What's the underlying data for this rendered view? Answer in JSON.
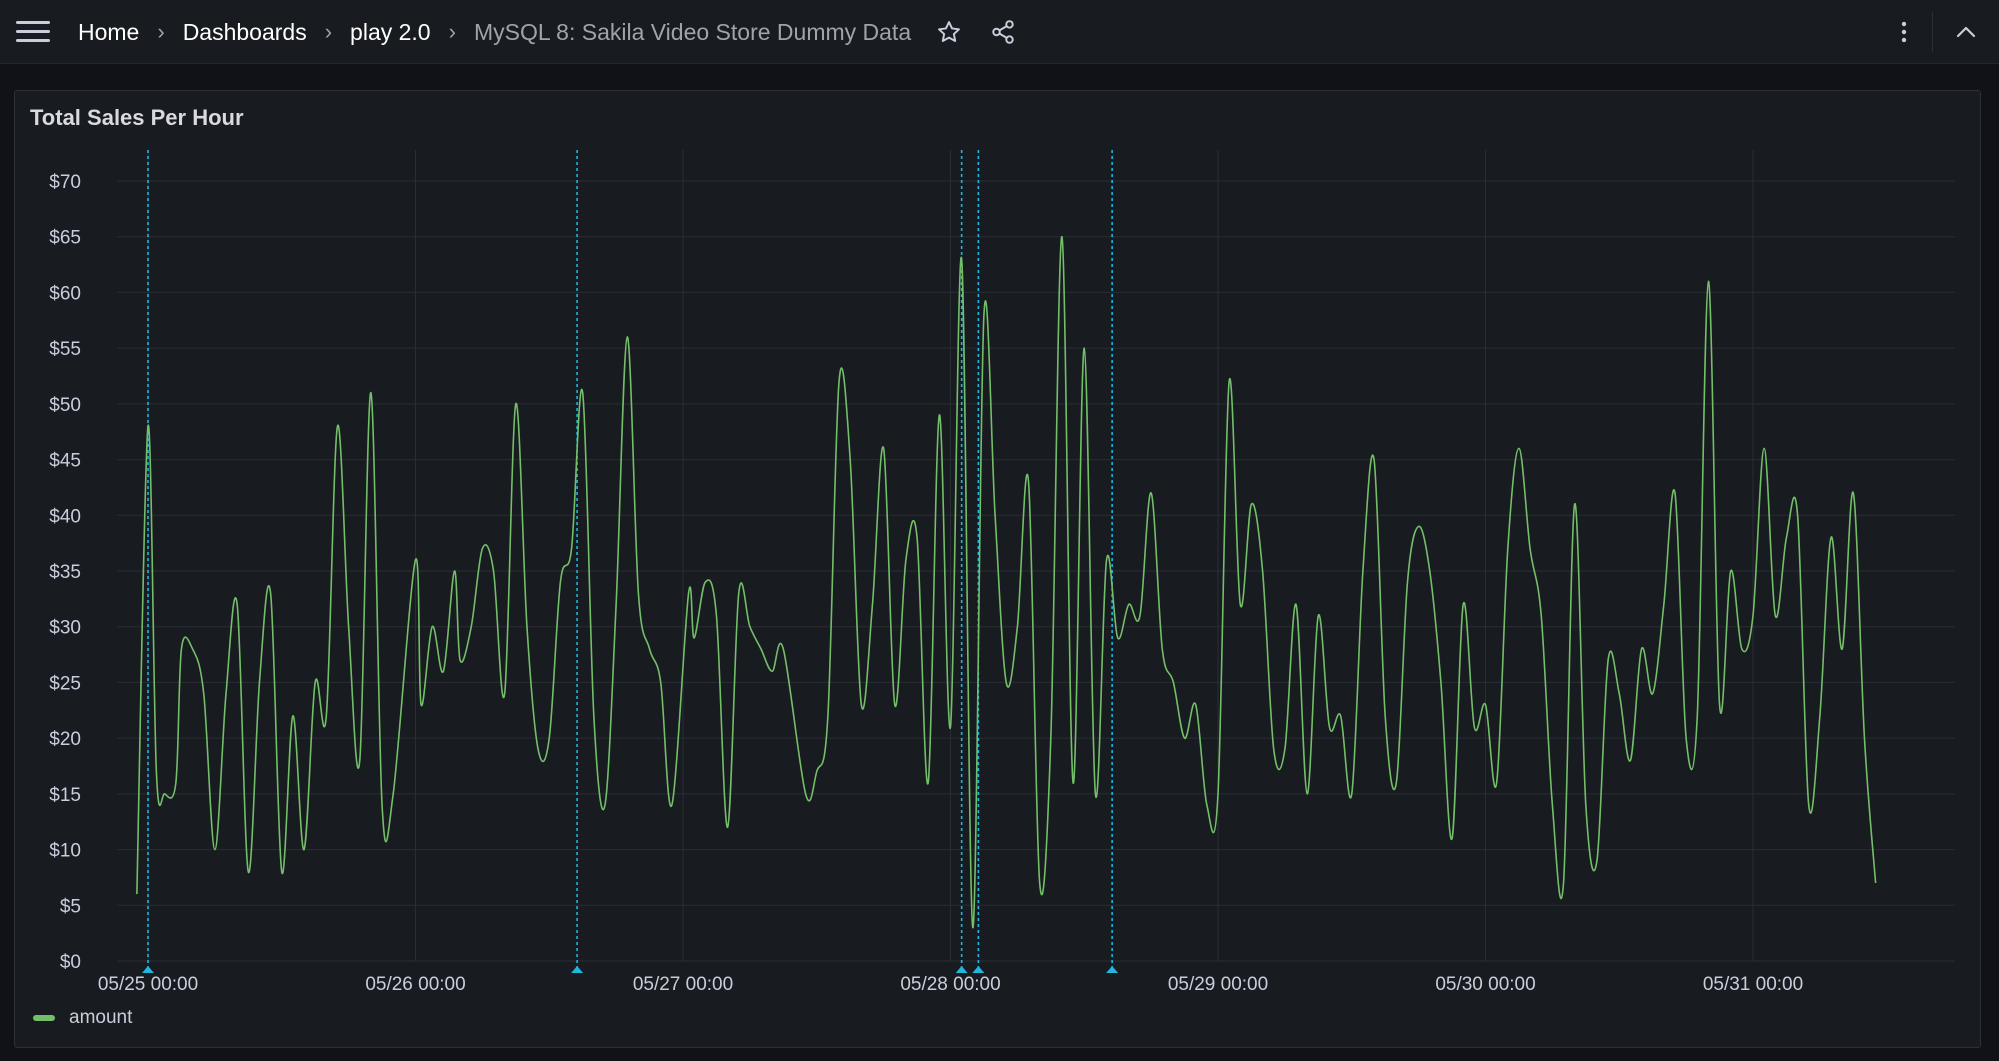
{
  "breadcrumb": {
    "home": "Home",
    "dashboards": "Dashboards",
    "folder": "play 2.0",
    "current": "MySQL 8: Sakila Video Store Dummy Data"
  },
  "icons": {
    "menu": "hamburger-menu-icon",
    "star": "star-icon",
    "share": "share-icon",
    "more": "kebab-menu-icon",
    "collapse": "chevron-up-icon"
  },
  "colors": {
    "series": "#73bf69",
    "annotation": "#1fb6e0",
    "background": "#181b1f"
  },
  "panel": {
    "title": "Total Sales Per Hour"
  },
  "chart_data": {
    "type": "line",
    "title": "Total Sales Per Hour",
    "xlabel": "",
    "ylabel": "",
    "ylim": [
      0,
      70
    ],
    "y_ticks": [
      "$0",
      "$5",
      "$10",
      "$15",
      "$20",
      "$25",
      "$30",
      "$35",
      "$40",
      "$45",
      "$50",
      "$55",
      "$60",
      "$65",
      "$70"
    ],
    "x_ticks": [
      "05/25 00:00",
      "05/26 00:00",
      "05/27 00:00",
      "05/28 00:00",
      "05/29 00:00",
      "05/30 00:00",
      "05/31 00:00"
    ],
    "legend": {
      "placement": "bottom-left",
      "entries": [
        "amount"
      ]
    },
    "grid": true,
    "annotations_x": [
      "05/25 00:00",
      "05/26 14:30",
      "05/28 01:00",
      "05/28 02:30",
      "05/28 14:30"
    ],
    "series": [
      {
        "name": "amount",
        "points": [
          [
            "05/24 23:00",
            6
          ],
          [
            "05/25 00:00",
            48
          ],
          [
            "05/25 00:45",
            17
          ],
          [
            "05/25 01:30",
            15
          ],
          [
            "05/25 02:30",
            16
          ],
          [
            "05/25 03:00",
            28
          ],
          [
            "05/25 04:00",
            28
          ],
          [
            "05/25 05:00",
            24
          ],
          [
            "05/25 06:00",
            10
          ],
          [
            "05/25 07:00",
            24
          ],
          [
            "05/25 08:00",
            32
          ],
          [
            "05/25 09:00",
            8
          ],
          [
            "05/25 10:00",
            25
          ],
          [
            "05/25 11:00",
            33
          ],
          [
            "05/25 12:00",
            8
          ],
          [
            "05/25 13:00",
            22
          ],
          [
            "05/25 14:00",
            10
          ],
          [
            "05/25 15:00",
            25
          ],
          [
            "05/25 16:00",
            22
          ],
          [
            "05/25 17:00",
            48
          ],
          [
            "05/25 18:00",
            30
          ],
          [
            "05/25 19:00",
            18
          ],
          [
            "05/25 20:00",
            51
          ],
          [
            "05/25 21:00",
            14
          ],
          [
            "05/25 22:00",
            15
          ],
          [
            "05/26 00:00",
            36
          ],
          [
            "05/26 00:30",
            23
          ],
          [
            "05/26 01:30",
            30
          ],
          [
            "05/26 02:30",
            26
          ],
          [
            "05/26 03:30",
            35
          ],
          [
            "05/26 04:00",
            27
          ],
          [
            "05/26 05:00",
            30
          ],
          [
            "05/26 06:00",
            37
          ],
          [
            "05/26 07:00",
            35
          ],
          [
            "05/26 08:00",
            24
          ],
          [
            "05/26 09:00",
            50
          ],
          [
            "05/26 10:00",
            30
          ],
          [
            "05/26 11:00",
            19
          ],
          [
            "05/26 12:00",
            20
          ],
          [
            "05/26 13:00",
            34
          ],
          [
            "05/26 14:00",
            37
          ],
          [
            "05/26 15:00",
            51
          ],
          [
            "05/26 16:00",
            22
          ],
          [
            "05/26 17:00",
            14
          ],
          [
            "05/26 18:00",
            32
          ],
          [
            "05/26 19:00",
            56
          ],
          [
            "05/26 20:00",
            33
          ],
          [
            "05/26 21:00",
            28
          ],
          [
            "05/26 22:00",
            25
          ],
          [
            "05/26 23:00",
            14
          ],
          [
            "05/27 00:30",
            33
          ],
          [
            "05/27 01:00",
            29
          ],
          [
            "05/27 02:00",
            34
          ],
          [
            "05/27 03:00",
            31
          ],
          [
            "05/27 04:00",
            12
          ],
          [
            "05/27 05:00",
            33
          ],
          [
            "05/27 06:00",
            30
          ],
          [
            "05/27 07:00",
            28
          ],
          [
            "05/27 08:00",
            26
          ],
          [
            "05/27 09:00",
            28
          ],
          [
            "05/27 11:00",
            15
          ],
          [
            "05/27 12:00",
            17
          ],
          [
            "05/27 13:00",
            22
          ],
          [
            "05/27 14:00",
            52
          ],
          [
            "05/27 15:00",
            45
          ],
          [
            "05/27 16:00",
            23
          ],
          [
            "05/27 17:00",
            32
          ],
          [
            "05/27 18:00",
            46
          ],
          [
            "05/27 19:00",
            23
          ],
          [
            "05/27 20:00",
            36
          ],
          [
            "05/27 21:00",
            38
          ],
          [
            "05/27 22:00",
            16
          ],
          [
            "05/27 23:00",
            49
          ],
          [
            "05/28 00:00",
            21
          ],
          [
            "05/28 01:00",
            63
          ],
          [
            "05/28 02:00",
            3
          ],
          [
            "05/28 03:00",
            58
          ],
          [
            "05/28 04:00",
            40
          ],
          [
            "05/28 05:00",
            25
          ],
          [
            "05/28 06:00",
            30
          ],
          [
            "05/28 07:00",
            43
          ],
          [
            "05/28 08:00",
            7
          ],
          [
            "05/28 09:00",
            20
          ],
          [
            "05/28 10:00",
            65
          ],
          [
            "05/28 11:00",
            16
          ],
          [
            "05/28 12:00",
            55
          ],
          [
            "05/28 13:00",
            15
          ],
          [
            "05/28 14:00",
            36
          ],
          [
            "05/28 15:00",
            29
          ],
          [
            "05/28 16:00",
            32
          ],
          [
            "05/28 17:00",
            31
          ],
          [
            "05/28 18:00",
            42
          ],
          [
            "05/28 19:00",
            28
          ],
          [
            "05/28 20:00",
            25
          ],
          [
            "05/28 21:00",
            20
          ],
          [
            "05/28 22:00",
            23
          ],
          [
            "05/28 23:00",
            14
          ],
          [
            "05/29 00:00",
            15
          ],
          [
            "05/29 01:00",
            52
          ],
          [
            "05/29 02:00",
            32
          ],
          [
            "05/29 03:00",
            41
          ],
          [
            "05/29 04:00",
            35
          ],
          [
            "05/29 05:00",
            19
          ],
          [
            "05/29 06:00",
            19
          ],
          [
            "05/29 07:00",
            32
          ],
          [
            "05/29 08:00",
            15
          ],
          [
            "05/29 09:00",
            31
          ],
          [
            "05/29 10:00",
            21
          ],
          [
            "05/29 11:00",
            22
          ],
          [
            "05/29 12:00",
            15
          ],
          [
            "05/29 13:00",
            35
          ],
          [
            "05/29 14:00",
            45
          ],
          [
            "05/29 15:00",
            22
          ],
          [
            "05/29 16:00",
            16
          ],
          [
            "05/29 17:00",
            34
          ],
          [
            "05/29 18:00",
            39
          ],
          [
            "05/29 19:00",
            35
          ],
          [
            "05/29 20:00",
            25
          ],
          [
            "05/29 21:00",
            11
          ],
          [
            "05/29 22:00",
            32
          ],
          [
            "05/29 23:00",
            21
          ],
          [
            "05/30 00:00",
            23
          ],
          [
            "05/30 01:00",
            16
          ],
          [
            "05/30 02:00",
            37
          ],
          [
            "05/30 03:00",
            46
          ],
          [
            "05/30 04:00",
            37
          ],
          [
            "05/30 05:00",
            31
          ],
          [
            "05/30 06:00",
            14
          ],
          [
            "05/30 07:00",
            7
          ],
          [
            "05/30 08:00",
            41
          ],
          [
            "05/30 09:00",
            14
          ],
          [
            "05/30 10:00",
            9
          ],
          [
            "05/30 11:00",
            27
          ],
          [
            "05/30 12:00",
            24
          ],
          [
            "05/30 13:00",
            18
          ],
          [
            "05/30 14:00",
            28
          ],
          [
            "05/30 15:00",
            24
          ],
          [
            "05/30 16:00",
            32
          ],
          [
            "05/30 17:00",
            42
          ],
          [
            "05/30 18:00",
            20
          ],
          [
            "05/30 19:00",
            22
          ],
          [
            "05/30 20:00",
            61
          ],
          [
            "05/30 21:00",
            23
          ],
          [
            "05/30 22:00",
            35
          ],
          [
            "05/30 23:00",
            28
          ],
          [
            "05/31 00:00",
            31
          ],
          [
            "05/31 01:00",
            46
          ],
          [
            "05/31 02:00",
            31
          ],
          [
            "05/31 03:00",
            38
          ],
          [
            "05/31 04:00",
            40
          ],
          [
            "05/31 05:00",
            14
          ],
          [
            "05/31 06:00",
            22
          ],
          [
            "05/31 07:00",
            38
          ],
          [
            "05/31 08:00",
            28
          ],
          [
            "05/31 09:00",
            42
          ],
          [
            "05/31 10:00",
            20
          ],
          [
            "05/31 11:00",
            7
          ]
        ]
      }
    ]
  }
}
